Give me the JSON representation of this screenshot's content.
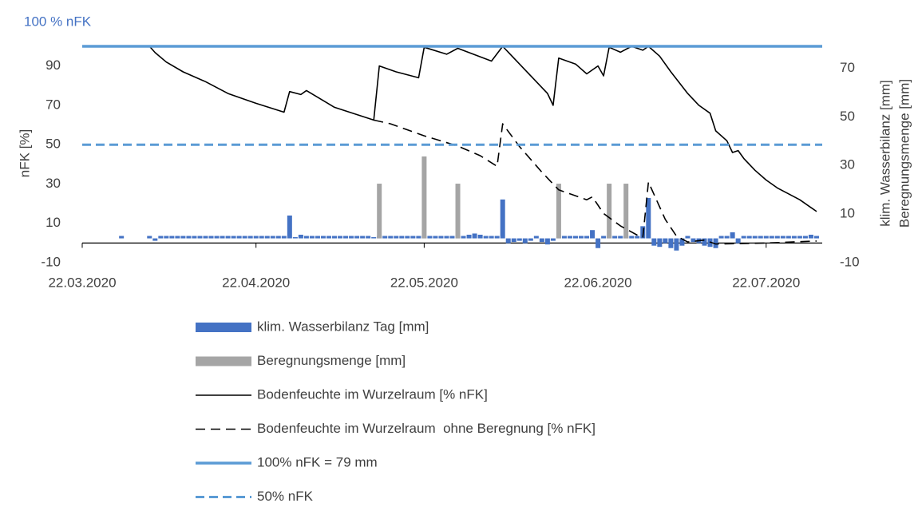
{
  "chart_data": {
    "type": "combo",
    "annotation": "100 % nFK",
    "y_label": "nFK [%]",
    "y2_label": [
      "klim. Wasserbilanz [mm]",
      "Beregnungsmenge [mm]"
    ],
    "xlim": [
      "2020-03-22",
      "2020-08-01"
    ],
    "xticks": [
      {
        "value": "2020-03-22",
        "label": "22.03.2020"
      },
      {
        "value": "2020-04-22",
        "label": "22.04.2020"
      },
      {
        "value": "2020-05-22",
        "label": "22.05.2020"
      },
      {
        "value": "2020-06-22",
        "label": "22.06.2020"
      },
      {
        "value": "2020-07-22",
        "label": "22.07.2020"
      }
    ],
    "ylim": [
      -10,
      100
    ],
    "yticks": [
      -10,
      10,
      30,
      50,
      70,
      90
    ],
    "y2lim": [
      -10,
      79
    ],
    "y2ticks": [
      -10,
      10,
      30,
      50,
      70
    ],
    "legend": "bottom",
    "series": [
      {
        "name": "klim. Wasserbilanz Tag [mm]",
        "type": "bar",
        "axis": "y2",
        "color": "#4472c4",
        "x": [
          "2020-03-29",
          "2020-04-03",
          "2020-04-04",
          "2020-04-05",
          "2020-04-06",
          "2020-04-07",
          "2020-04-08",
          "2020-04-09",
          "2020-04-10",
          "2020-04-11",
          "2020-04-12",
          "2020-04-13",
          "2020-04-14",
          "2020-04-15",
          "2020-04-16",
          "2020-04-17",
          "2020-04-18",
          "2020-04-19",
          "2020-04-20",
          "2020-04-21",
          "2020-04-22",
          "2020-04-23",
          "2020-04-24",
          "2020-04-25",
          "2020-04-26",
          "2020-04-27",
          "2020-04-28",
          "2020-04-29",
          "2020-04-30",
          "2020-05-01",
          "2020-05-02",
          "2020-05-03",
          "2020-05-04",
          "2020-05-05",
          "2020-05-06",
          "2020-05-07",
          "2020-05-08",
          "2020-05-09",
          "2020-05-10",
          "2020-05-11",
          "2020-05-12",
          "2020-05-13",
          "2020-05-14",
          "2020-05-15",
          "2020-05-16",
          "2020-05-17",
          "2020-05-18",
          "2020-05-19",
          "2020-05-20",
          "2020-05-21",
          "2020-05-22",
          "2020-05-23",
          "2020-05-24",
          "2020-05-25",
          "2020-05-26",
          "2020-05-27",
          "2020-05-28",
          "2020-05-29",
          "2020-05-30",
          "2020-05-31",
          "2020-06-01",
          "2020-06-02",
          "2020-06-03",
          "2020-06-04",
          "2020-06-05",
          "2020-06-06",
          "2020-06-07",
          "2020-06-08",
          "2020-06-09",
          "2020-06-10",
          "2020-06-11",
          "2020-06-12",
          "2020-06-13",
          "2020-06-14",
          "2020-06-15",
          "2020-06-16",
          "2020-06-17",
          "2020-06-18",
          "2020-06-19",
          "2020-06-20",
          "2020-06-21",
          "2020-06-22",
          "2020-06-23",
          "2020-06-24",
          "2020-06-25",
          "2020-06-26",
          "2020-06-27",
          "2020-06-28",
          "2020-06-29",
          "2020-06-30",
          "2020-07-01",
          "2020-07-02",
          "2020-07-03",
          "2020-07-04",
          "2020-07-05",
          "2020-07-06",
          "2020-07-07",
          "2020-07-08",
          "2020-07-09",
          "2020-07-10",
          "2020-07-11",
          "2020-07-12",
          "2020-07-13",
          "2020-07-14",
          "2020-07-15",
          "2020-07-16",
          "2020-07-17",
          "2020-07-18",
          "2020-07-19",
          "2020-07-20",
          "2020-07-21",
          "2020-07-22",
          "2020-07-23",
          "2020-07-24",
          "2020-07-25",
          "2020-07-26",
          "2020-07-27",
          "2020-07-28",
          "2020-07-29",
          "2020-07-30",
          "2020-07-31"
        ],
        "values": [
          1,
          1,
          -1,
          1,
          1,
          1,
          1,
          1,
          1,
          1,
          1,
          1,
          1,
          1,
          1,
          1,
          1,
          1,
          1,
          1,
          1,
          1,
          1,
          1,
          1,
          1,
          9.4,
          0.5,
          1.5,
          1,
          1,
          1,
          1,
          1,
          1,
          1,
          1,
          1,
          1,
          1,
          1,
          0.5,
          1,
          1,
          1,
          1,
          1,
          1,
          1,
          1,
          1,
          1,
          1,
          1,
          1,
          1,
          1,
          1,
          1.5,
          2,
          1.5,
          1,
          1,
          1,
          16,
          -2,
          -1.5,
          -1,
          -2,
          -1,
          1,
          -1.5,
          -2.5,
          -1,
          1,
          1,
          1,
          1,
          1,
          1,
          3.4,
          -4,
          1,
          1,
          1,
          1,
          1,
          1,
          1,
          5,
          16.6,
          -3,
          -3.5,
          -2,
          -4,
          -5,
          -3,
          1,
          -1.5,
          -2,
          -3,
          -3.5,
          -4,
          1,
          1,
          2.5,
          -2,
          1,
          1,
          1,
          1,
          1,
          1,
          1,
          1,
          1,
          1,
          1,
          1,
          1.5,
          1
        ]
      },
      {
        "name": "Beregnungsmenge [mm]",
        "type": "bar",
        "axis": "y2",
        "color": "#a5a5a5",
        "x": [
          "2020-05-14",
          "2020-05-22",
          "2020-05-28",
          "2020-06-15",
          "2020-06-24",
          "2020-06-27"
        ],
        "values": [
          22.5,
          33.7,
          22.5,
          22.5,
          22.5,
          22.5
        ]
      },
      {
        "name": "Bodenfeuchte im Wurzelraum [% nFK]",
        "type": "line",
        "axis": "y",
        "color": "#000000",
        "style": "solid",
        "x": [
          "2020-04-03",
          "2020-04-04",
          "2020-04-06",
          "2020-04-09",
          "2020-04-13",
          "2020-04-17",
          "2020-04-22",
          "2020-04-27",
          "2020-04-28",
          "2020-04-30",
          "2020-05-01",
          "2020-05-06",
          "2020-05-13",
          "2020-05-14",
          "2020-05-17",
          "2020-05-21",
          "2020-05-22",
          "2020-05-26",
          "2020-05-28",
          "2020-06-03",
          "2020-06-05",
          "2020-06-08",
          "2020-06-13",
          "2020-06-14",
          "2020-06-15",
          "2020-06-18",
          "2020-06-20",
          "2020-06-22",
          "2020-06-23",
          "2020-06-24",
          "2020-06-26",
          "2020-06-28",
          "2020-06-30",
          "2020-07-01",
          "2020-07-03",
          "2020-07-05",
          "2020-07-08",
          "2020-07-10",
          "2020-07-12",
          "2020-07-13",
          "2020-07-15",
          "2020-07-16",
          "2020-07-17",
          "2020-07-18",
          "2020-07-20",
          "2020-07-22",
          "2020-07-24",
          "2020-07-26",
          "2020-07-28",
          "2020-07-31"
        ],
        "values": [
          100,
          96.8,
          92,
          87,
          82,
          76,
          71,
          66.5,
          77,
          75.5,
          77.5,
          69,
          62.5,
          90,
          87,
          84,
          99.5,
          96,
          99,
          92.5,
          100,
          91,
          76,
          70,
          94,
          91,
          86,
          90,
          85,
          99.5,
          97,
          100,
          98,
          100,
          95,
          87,
          76,
          70,
          66,
          57,
          52,
          46,
          47,
          43,
          37,
          32,
          28,
          25,
          22,
          16
        ]
      },
      {
        "name": "Bodenfeuchte im Wurzelraum  ohne Beregnung [% nFK]",
        "type": "line",
        "axis": "y",
        "color": "#000000",
        "style": "dashed",
        "x": [
          "2020-05-13",
          "2020-05-16",
          "2020-05-22",
          "2020-05-28",
          "2020-06-01",
          "2020-06-04",
          "2020-06-05",
          "2020-06-08",
          "2020-06-12",
          "2020-06-15",
          "2020-06-17",
          "2020-06-20",
          "2020-06-21",
          "2020-06-23",
          "2020-06-26",
          "2020-06-29",
          "2020-06-30",
          "2020-07-01",
          "2020-07-04",
          "2020-07-06",
          "2020-07-08",
          "2020-07-11",
          "2020-07-13",
          "2020-07-22",
          "2020-07-31"
        ],
        "values": [
          62.5,
          60.6,
          54.5,
          49.3,
          44.4,
          39,
          60.6,
          49,
          36,
          27,
          25,
          22,
          23.5,
          15,
          8.7,
          4,
          3,
          31,
          12,
          3.5,
          0.5,
          1.5,
          -0.5,
          0,
          1
        ]
      },
      {
        "name": "100% nFK = 79 mm",
        "type": "line",
        "axis": "y",
        "color": "#5b9bd5",
        "style": "thick",
        "x": [
          "2020-03-22",
          "2020-08-01"
        ],
        "values": [
          100,
          100
        ]
      },
      {
        "name": "50% nFK",
        "type": "line",
        "axis": "y",
        "color": "#5b9bd5",
        "style": "thickdashed",
        "x": [
          "2020-03-22",
          "2020-08-01"
        ],
        "values": [
          50,
          50
        ]
      }
    ]
  }
}
